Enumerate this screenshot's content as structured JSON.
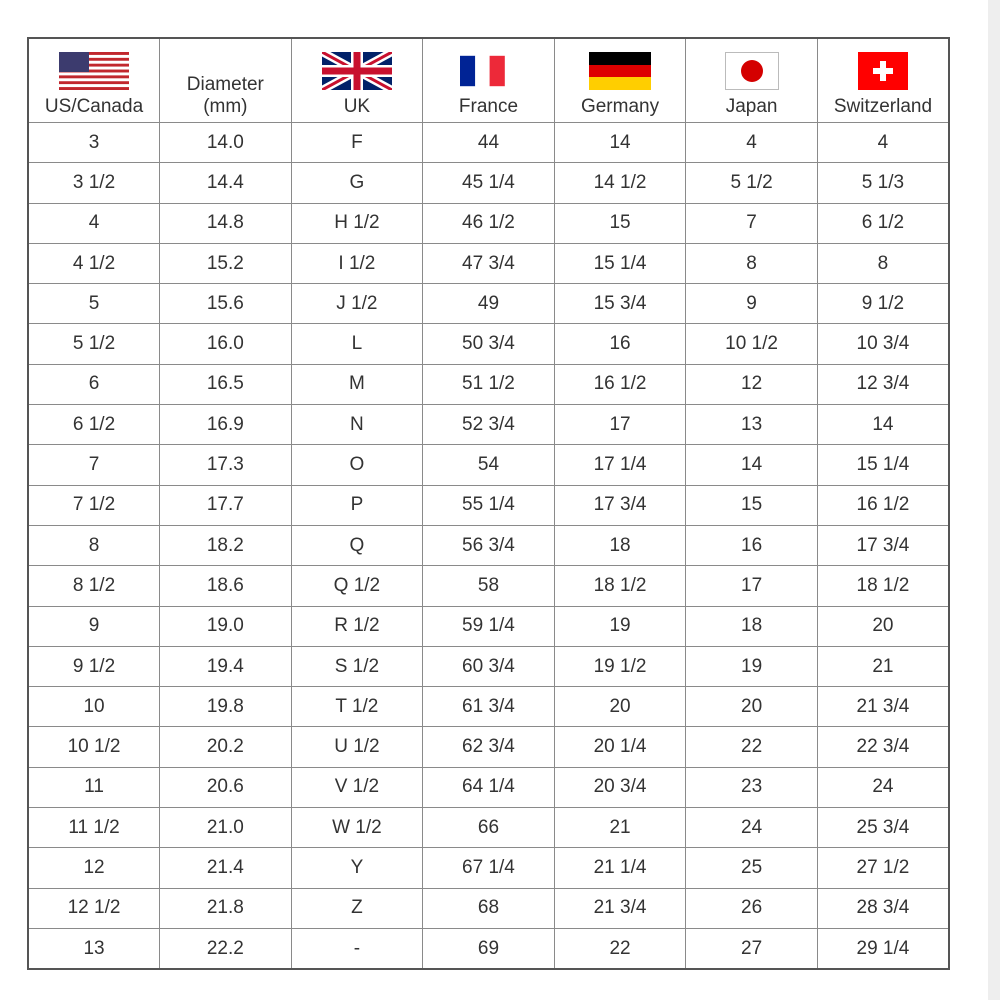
{
  "headers": [
    {
      "label": "US/Canada",
      "icon": "us-flag-icon"
    },
    {
      "label": "Diameter\n(mm)",
      "line1": "Diameter",
      "line2": "(mm)"
    },
    {
      "label": "UK",
      "icon": "uk-flag-icon"
    },
    {
      "label": "France",
      "icon": "france-flag-icon"
    },
    {
      "label": "Germany",
      "icon": "germany-flag-icon"
    },
    {
      "label": "Japan",
      "icon": "japan-flag-icon"
    },
    {
      "label": "Switzerland",
      "icon": "switzerland-flag-icon"
    }
  ],
  "rows": [
    [
      "3",
      "14.0",
      "F",
      "44",
      "14",
      "4",
      "4"
    ],
    [
      "3 1/2",
      "14.4",
      "G",
      "45 1/4",
      "14 1/2",
      "5 1/2",
      "5 1/3"
    ],
    [
      "4",
      "14.8",
      "H 1/2",
      "46 1/2",
      "15",
      "7",
      "6 1/2"
    ],
    [
      "4 1/2",
      "15.2",
      "I 1/2",
      "47 3/4",
      "15 1/4",
      "8",
      "8"
    ],
    [
      "5",
      "15.6",
      "J 1/2",
      "49",
      "15 3/4",
      "9",
      "9 1/2"
    ],
    [
      "5 1/2",
      "16.0",
      "L",
      "50 3/4",
      "16",
      "10 1/2",
      "10 3/4"
    ],
    [
      "6",
      "16.5",
      "M",
      "51 1/2",
      "16 1/2",
      "12",
      "12 3/4"
    ],
    [
      "6 1/2",
      "16.9",
      "N",
      "52 3/4",
      "17",
      "13",
      "14"
    ],
    [
      "7",
      "17.3",
      "O",
      "54",
      "17 1/4",
      "14",
      "15 1/4"
    ],
    [
      "7 1/2",
      "17.7",
      "P",
      "55 1/4",
      "17 3/4",
      "15",
      "16 1/2"
    ],
    [
      "8",
      "18.2",
      "Q",
      "56 3/4",
      "18",
      "16",
      "17 3/4"
    ],
    [
      "8 1/2",
      "18.6",
      "Q 1/2",
      "58",
      "18 1/2",
      "17",
      "18 1/2"
    ],
    [
      "9",
      "19.0",
      "R 1/2",
      "59 1/4",
      "19",
      "18",
      "20"
    ],
    [
      "9 1/2",
      "19.4",
      "S 1/2",
      "60 3/4",
      "19 1/2",
      "19",
      "21"
    ],
    [
      "10",
      "19.8",
      "T 1/2",
      "61 3/4",
      "20",
      "20",
      "21 3/4"
    ],
    [
      "10 1/2",
      "20.2",
      "U 1/2",
      "62 3/4",
      "20 1/4",
      "22",
      "22 3/4"
    ],
    [
      "11",
      "20.6",
      "V 1/2",
      "64 1/4",
      "20 3/4",
      "23",
      "24"
    ],
    [
      "11 1/2",
      "21.0",
      "W 1/2",
      "66",
      "21",
      "24",
      "25 3/4"
    ],
    [
      "12",
      "21.4",
      "Y",
      "67 1/4",
      "21 1/4",
      "25",
      "27 1/2"
    ],
    [
      "12 1/2",
      "21.8",
      "Z",
      "68",
      "21 3/4",
      "26",
      "28 3/4"
    ],
    [
      "13",
      "22.2",
      "-",
      "69",
      "22",
      "27",
      "29 1/4"
    ]
  ],
  "colors": {
    "border": "#8a8a8a",
    "text": "#333333",
    "us_blue": "#3c3b6e",
    "us_red": "#c1272d",
    "uk_blue": "#012169",
    "uk_red": "#c8102e",
    "fr_blue": "#002395",
    "fr_red": "#ed2939",
    "de_black": "#000000",
    "de_red": "#dd0000",
    "de_gold": "#ffce00",
    "jp_red": "#d40000",
    "ch_red": "#ff0000"
  }
}
